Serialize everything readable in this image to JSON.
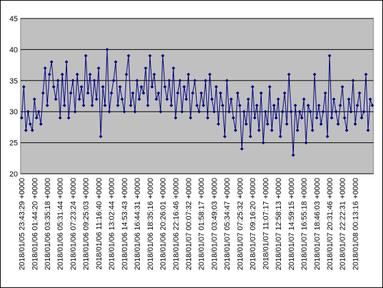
{
  "chart_data": {
    "type": "line",
    "color": "#000080",
    "plot_background": "#c0c0c0",
    "grid": true,
    "ylim": [
      20,
      45
    ],
    "yticks": [
      20,
      25,
      30,
      35,
      40,
      45
    ],
    "categories": [
      "2018/01/05 23:43:29 +0000",
      null,
      null,
      null,
      null,
      null,
      "2018/01/06 01:44:20 +0000",
      null,
      null,
      null,
      null,
      null,
      "2018/01/06 03:35:18 +0000",
      null,
      null,
      null,
      null,
      null,
      "2018/01/06 05:31:44 +0000",
      null,
      null,
      null,
      null,
      null,
      "2018/01/06 07:23:24 +0000",
      null,
      null,
      null,
      null,
      null,
      "2018/01/06 09:25:03 +0000",
      null,
      null,
      null,
      null,
      null,
      "2018/01/06 11:16:40 +0000",
      null,
      null,
      null,
      null,
      null,
      "2018/01/06 13:02:44 +0000",
      null,
      null,
      null,
      null,
      null,
      "2018/01/06 14:53:43 +0000",
      null,
      null,
      null,
      null,
      null,
      "2018/01/06 16:44:31 +0000",
      null,
      null,
      null,
      null,
      null,
      "2018/01/06 18:35:16 +0000",
      null,
      null,
      null,
      null,
      null,
      "2018/01/06 20:26:01 +0000",
      null,
      null,
      null,
      null,
      null,
      "2018/01/06 22:16:46 +0000",
      null,
      null,
      null,
      null,
      null,
      "2018/01/07 00:07:32 +0000",
      null,
      null,
      null,
      null,
      null,
      "2018/01/07 01:58:17 +0000",
      null,
      null,
      null,
      null,
      null,
      "2018/01/07 03:49:03 +0000",
      null,
      null,
      null,
      null,
      null,
      "2018/01/07 05:34:47 +0000",
      null,
      null,
      null,
      null,
      null,
      "2018/01/07 07:25:32 +0000",
      null,
      null,
      null,
      null,
      null,
      "2018/01/07 09:16:20 +0000",
      null,
      null,
      null,
      null,
      null,
      "2018/01/07 11:07:17 +0000",
      null,
      null,
      null,
      null,
      null,
      "2018/01/07 12:58:13 +0000",
      null,
      null,
      null,
      null,
      null,
      "2018/01/07 14:59:15 +0000",
      null,
      null,
      null,
      null,
      null,
      "2018/01/07 16:55:18 +0000",
      null,
      null,
      null,
      null,
      null,
      "2018/01/07 18:46:03 +0000",
      null,
      null,
      null,
      null,
      null,
      "2018/01/07 20:31:46 +0000",
      null,
      null,
      null,
      null,
      null,
      "2018/01/07 22:22:31 +0000",
      null,
      null,
      null,
      null,
      null,
      "2018/01/08 00:13:16 +0000",
      null,
      null,
      null,
      null,
      null,
      null,
      null,
      null
    ],
    "values": [
      29,
      34,
      27,
      30,
      28,
      27,
      32,
      29,
      30,
      28,
      33,
      37,
      31,
      36,
      38,
      34,
      32,
      35,
      29,
      36,
      31,
      38,
      29,
      33,
      35,
      30,
      36,
      32,
      34,
      31,
      39,
      33,
      36,
      31,
      35,
      32,
      37,
      26,
      34,
      31,
      40,
      30,
      33,
      35,
      38,
      31,
      34,
      32,
      30,
      36,
      39,
      31,
      33,
      30,
      35,
      32,
      34,
      33,
      37,
      31,
      39,
      34,
      36,
      32,
      33,
      30,
      39,
      34,
      32,
      35,
      31,
      37,
      29,
      33,
      35,
      30,
      34,
      32,
      36,
      29,
      33,
      35,
      31,
      30,
      33,
      31,
      35,
      29,
      36,
      32,
      30,
      34,
      28,
      33,
      31,
      26,
      35,
      30,
      32,
      29,
      27,
      33,
      31,
      24,
      30,
      28,
      32,
      26,
      34,
      29,
      31,
      27,
      33,
      25,
      30,
      28,
      34,
      27,
      31,
      29,
      32,
      26,
      30,
      33,
      28,
      36,
      30,
      23,
      31,
      27,
      30,
      29,
      32,
      25,
      31,
      30,
      27,
      36,
      29,
      31,
      28,
      30,
      33,
      26,
      39,
      29,
      32,
      30,
      28,
      31,
      34,
      29,
      27,
      32,
      30,
      35,
      28,
      31,
      33,
      29,
      30,
      36,
      27,
      32,
      31
    ]
  }
}
